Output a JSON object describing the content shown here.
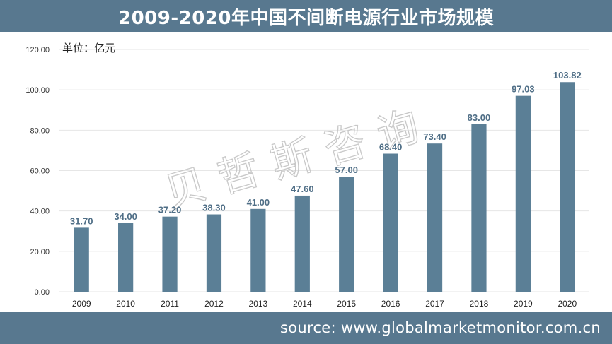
{
  "header": {
    "title": "2009-2020年中国不间断电源行业市场规模"
  },
  "footer": {
    "source": "source: www.globalmarketmonitor.com.cn"
  },
  "watermark": {
    "text": "贝哲斯咨询"
  },
  "colors": {
    "bar": "#5b7f96",
    "header": "#58788f",
    "data_label": "#4f6e86",
    "grid": "#e6e6e6"
  },
  "chart_data": {
    "type": "bar",
    "unit": "单位：亿元",
    "categories": [
      "2009",
      "2010",
      "2011",
      "2012",
      "2013",
      "2014",
      "2015",
      "2016",
      "2017",
      "2018",
      "2019",
      "2020"
    ],
    "values": [
      31.7,
      34.0,
      37.2,
      38.3,
      41.0,
      47.6,
      57.0,
      68.4,
      73.4,
      83.0,
      97.03,
      103.82
    ],
    "value_labels": [
      "31.70",
      "34.00",
      "37.20",
      "38.30",
      "41.00",
      "47.60",
      "57.00",
      "68.40",
      "73.40",
      "83.00",
      "97.03",
      "103.82"
    ],
    "yticks": [
      "0.00",
      "20.00",
      "40.00",
      "60.00",
      "80.00",
      "100.00",
      "120.00"
    ],
    "ylim": [
      0,
      120
    ],
    "grid": true,
    "legend": "none"
  }
}
